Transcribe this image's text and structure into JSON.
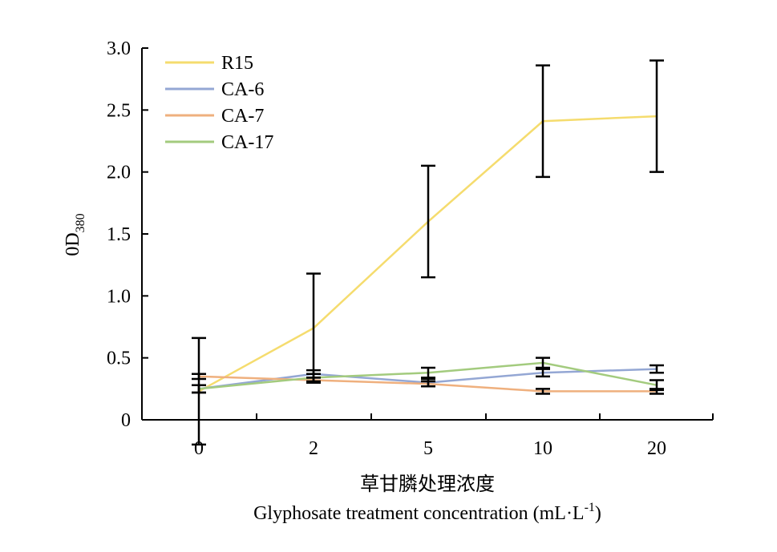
{
  "chart_data": {
    "type": "line",
    "title": "",
    "xlabel_cn": "草甘膦处理浓度",
    "xlabel_en_prefix": "Glyphosate treatment concentration (mL·L",
    "xlabel_en_sup": "-1",
    "xlabel_en_suffix": ")",
    "ylabel_main": "0D",
    "ylabel_sub": "380",
    "categories": [
      "0",
      "2",
      "5",
      "10",
      "20"
    ],
    "ylim": [
      0,
      3.0
    ],
    "yticks": [
      0,
      0.5,
      1.0,
      1.5,
      2.0,
      2.5,
      3.0
    ],
    "ytick_labels": [
      "0",
      "0.5",
      "1.0",
      "1.5",
      "2.0",
      "2.5",
      "3.0"
    ],
    "grid": false,
    "legend_position": "top-left",
    "series": [
      {
        "name": "R15",
        "color": "#F5DC6E",
        "values": [
          0.23,
          0.74,
          1.6,
          2.41,
          2.45
        ],
        "errors": [
          0.43,
          0.44,
          0.45,
          0.45,
          0.45
        ]
      },
      {
        "name": "CA-6",
        "color": "#94A7D4",
        "values": [
          0.25,
          0.37,
          0.3,
          0.38,
          0.41
        ],
        "errors": [
          0.03,
          0.03,
          0.03,
          0.03,
          0.03
        ]
      },
      {
        "name": "CA-7",
        "color": "#EFB07E",
        "values": [
          0.35,
          0.32,
          0.29,
          0.23,
          0.23
        ],
        "errors": [
          0.02,
          0.02,
          0.02,
          0.02,
          0.02
        ]
      },
      {
        "name": "CA-17",
        "color": "#A3CB7E",
        "values": [
          0.25,
          0.34,
          0.38,
          0.46,
          0.28
        ],
        "errors": [
          0.03,
          0.03,
          0.04,
          0.04,
          0.04
        ]
      }
    ]
  }
}
